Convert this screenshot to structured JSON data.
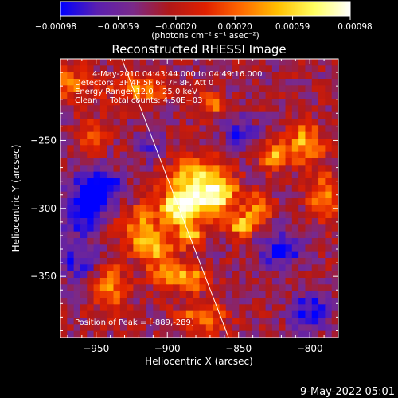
{
  "chart_data": {
    "type": "heatmap",
    "title": "Reconstructed RHESSI Image",
    "xlabel": "Heliocentric X (arcsec)",
    "ylabel": "Heliocentric Y (arcsec)",
    "xlim": [
      -975,
      -780
    ],
    "ylim": [
      -395,
      -190
    ],
    "x_ticks": [
      -950,
      -900,
      -850,
      -800
    ],
    "y_ticks": [
      -250,
      -300,
      -350
    ],
    "x_tick_labels": [
      "−950",
      "−900",
      "−850",
      "−800"
    ],
    "y_tick_labels": [
      "−250",
      "−300",
      "−350"
    ],
    "colorbar": {
      "min": -0.00098,
      "max": 0.00098,
      "ticks": [
        -0.00098,
        -0.00059,
        -0.0002,
        0.0002,
        0.00059,
        0.00098
      ],
      "tick_labels": [
        "−0.00098",
        "−0.00059",
        "−0.00020",
        "0.00020",
        "0.00059",
        "0.00098"
      ],
      "unit_label": "(photons cm⁻² s⁻¹ asec⁻²)",
      "colors": [
        "#0000ff",
        "#5a1fb0",
        "#7a2a8a",
        "#b01818",
        "#e02000",
        "#ff6a00",
        "#ffc000",
        "#ffff60",
        "#ffffff"
      ]
    },
    "annotations": [
      "4-May-2010 04:43:44.000 to 04:49:16.000",
      "Detectors: 3F 4F 5F 6F 7F 8F, Att 0",
      "Energy Range: 12.0 – 25.0 keV",
      "Clean     Total counts: 4.50E+03"
    ],
    "peak_label": "Position of Peak = [-889,-289]",
    "peak_position": [
      -889,
      -289
    ],
    "limb_line": [
      [
        -932,
        -190
      ],
      [
        -857,
        -395
      ]
    ],
    "grid": false,
    "blobs": [
      {
        "x": -880,
        "y": -285,
        "sx": 14,
        "sy": 14,
        "a": 1.4
      },
      {
        "x": -893,
        "y": -302,
        "sx": 10,
        "sy": 8,
        "a": 1.0
      },
      {
        "x": -862,
        "y": -290,
        "sx": 8,
        "sy": 10,
        "a": 0.9
      },
      {
        "x": -848,
        "y": -312,
        "sx": 7,
        "sy": 6,
        "a": 0.95
      },
      {
        "x": -836,
        "y": -300,
        "sx": 6,
        "sy": 8,
        "a": 0.85
      },
      {
        "x": -826,
        "y": -262,
        "sx": 6,
        "sy": 8,
        "a": 0.9
      },
      {
        "x": -804,
        "y": -252,
        "sx": 9,
        "sy": 10,
        "a": 1.0
      },
      {
        "x": -790,
        "y": -290,
        "sx": 8,
        "sy": 12,
        "a": 0.8
      },
      {
        "x": -920,
        "y": -316,
        "sx": 10,
        "sy": 12,
        "a": 0.85
      },
      {
        "x": -905,
        "y": -330,
        "sx": 8,
        "sy": 7,
        "a": 0.9
      },
      {
        "x": -898,
        "y": -348,
        "sx": 10,
        "sy": 7,
        "a": 0.95
      },
      {
        "x": -940,
        "y": -358,
        "sx": 8,
        "sy": 12,
        "a": 0.8
      },
      {
        "x": -875,
        "y": -380,
        "sx": 12,
        "sy": 8,
        "a": 0.75
      },
      {
        "x": -880,
        "y": -352,
        "sx": 6,
        "sy": 6,
        "a": 0.7
      },
      {
        "x": -920,
        "y": -212,
        "sx": 14,
        "sy": 7,
        "a": 0.8
      },
      {
        "x": -968,
        "y": -208,
        "sx": 10,
        "sy": 8,
        "a": 0.75
      },
      {
        "x": -952,
        "y": -245,
        "sx": 7,
        "sy": 8,
        "a": 0.55
      },
      {
        "x": -870,
        "y": -223,
        "sx": 6,
        "sy": 6,
        "a": 0.85
      },
      {
        "x": -885,
        "y": -320,
        "sx": 6,
        "sy": 6,
        "a": 1.1
      },
      {
        "x": -960,
        "y": -300,
        "sx": 10,
        "sy": 14,
        "a": -0.9
      },
      {
        "x": -945,
        "y": -285,
        "sx": 9,
        "sy": 9,
        "a": -1.0
      },
      {
        "x": -960,
        "y": -340,
        "sx": 10,
        "sy": 8,
        "a": -0.7
      },
      {
        "x": -820,
        "y": -330,
        "sx": 10,
        "sy": 10,
        "a": -0.8
      },
      {
        "x": -800,
        "y": -375,
        "sx": 10,
        "sy": 10,
        "a": -0.75
      },
      {
        "x": -848,
        "y": -245,
        "sx": 9,
        "sy": 10,
        "a": -0.55
      },
      {
        "x": -912,
        "y": -255,
        "sx": 8,
        "sy": 8,
        "a": -0.45
      }
    ]
  },
  "footer_date": "9-May-2022 05:01"
}
